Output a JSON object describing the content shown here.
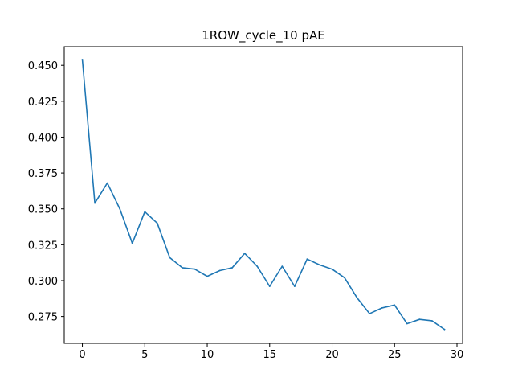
{
  "chart_data": {
    "type": "line",
    "title": "1ROW_cycle_10 pAE",
    "xlabel": "",
    "ylabel": "",
    "xlim": [
      -1.45,
      30.45
    ],
    "ylim": [
      0.2563,
      0.463
    ],
    "x_ticks": [
      0,
      5,
      10,
      15,
      20,
      25,
      30
    ],
    "x_tick_labels": [
      "0",
      "5",
      "10",
      "15",
      "20",
      "25",
      "30"
    ],
    "y_ticks": [
      0.275,
      0.3,
      0.325,
      0.35,
      0.375,
      0.4,
      0.425,
      0.45
    ],
    "y_tick_labels": [
      "0.275",
      "0.300",
      "0.325",
      "0.350",
      "0.375",
      "0.400",
      "0.425",
      "0.450"
    ],
    "grid": false,
    "series": [
      {
        "color": "#1f77b4",
        "x": [
          0,
          1,
          2,
          3,
          4,
          5,
          6,
          7,
          8,
          9,
          10,
          11,
          12,
          13,
          14,
          15,
          16,
          17,
          18,
          19,
          20,
          21,
          22,
          23,
          24,
          25,
          26,
          27,
          28,
          29
        ],
        "y": [
          0.454,
          0.354,
          0.368,
          0.35,
          0.326,
          0.348,
          0.34,
          0.316,
          0.309,
          0.308,
          0.303,
          0.307,
          0.309,
          0.319,
          0.31,
          0.296,
          0.31,
          0.296,
          0.315,
          0.311,
          0.308,
          0.302,
          0.288,
          0.277,
          0.281,
          0.283,
          0.27,
          0.273,
          0.272,
          0.266
        ]
      }
    ]
  }
}
